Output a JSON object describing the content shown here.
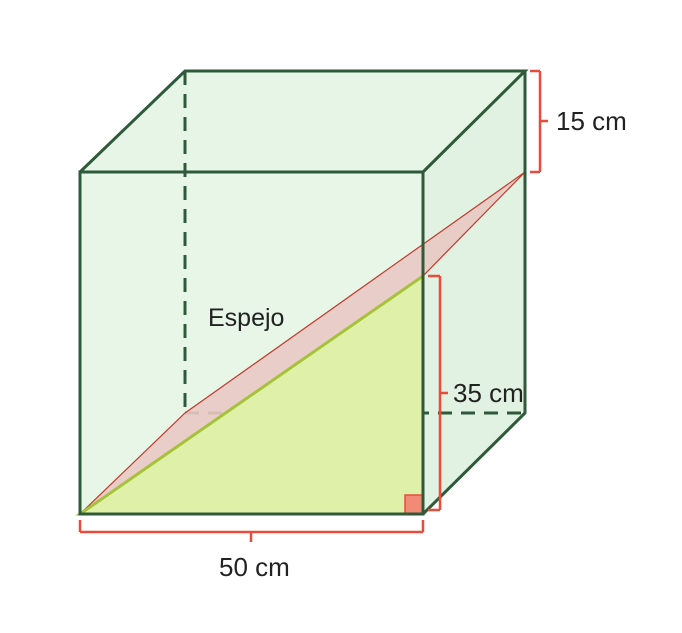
{
  "diagram": {
    "mirror_label": "Espejo",
    "labels": {
      "height_top": "15 cm",
      "height_mirror": "35 cm",
      "width_bottom": "50 cm"
    },
    "colors": {
      "cube_edge": "#2f5a3a",
      "cube_face": "#e6f5e6",
      "mirror_fill": "#e9c9c4",
      "mirror_edge": "#c0392b",
      "triangle_fill": "#dff0a8",
      "triangle_edge": "#a6c23a",
      "dimension_line": "#e74c3c",
      "right_angle_fill": "#f28a78"
    },
    "icons": {
      "right_angle": "right-angle-square-icon"
    }
  }
}
